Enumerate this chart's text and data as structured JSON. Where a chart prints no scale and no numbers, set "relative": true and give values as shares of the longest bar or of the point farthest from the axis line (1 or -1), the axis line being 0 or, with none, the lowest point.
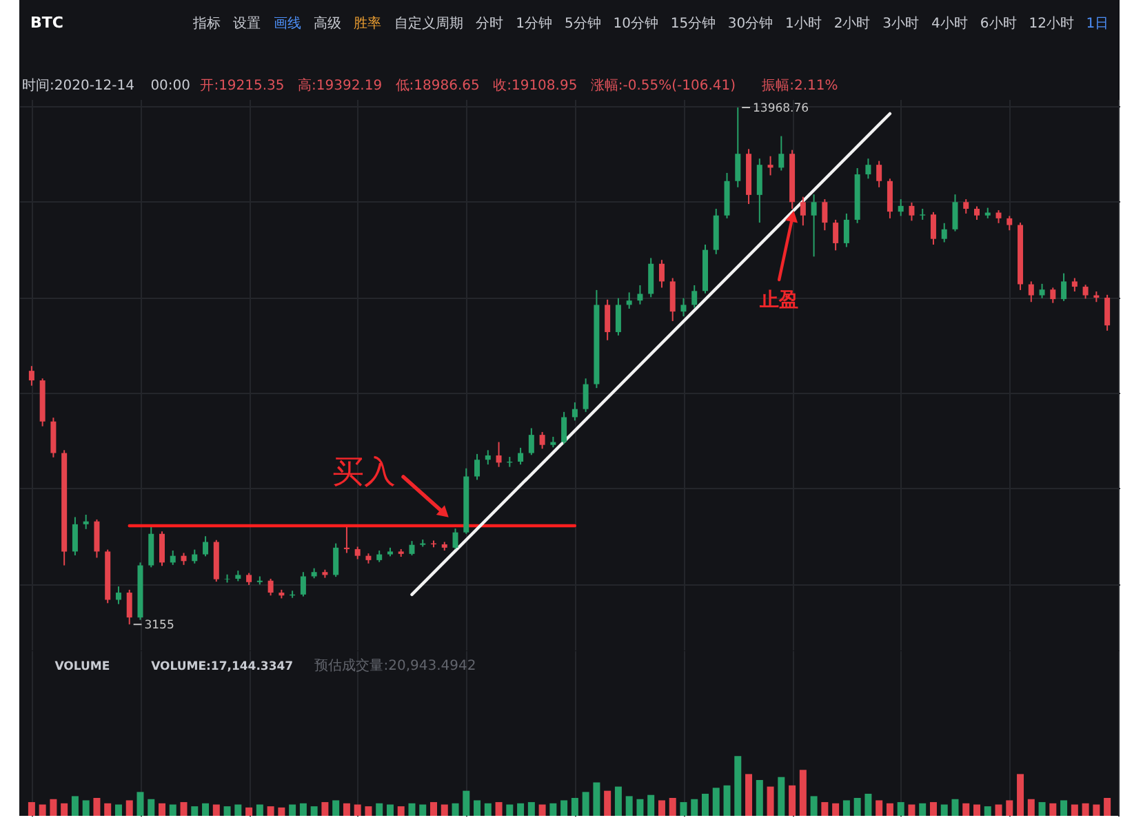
{
  "chart_data": [
    {
      "type": "candlestick",
      "grid": true,
      "title": "BTC",
      "subtitle": "时间:2020-12-14 00:00 开:19215.35 高:19392.19 低:18986.65 收:19108.95 涨幅:-0.55%(-106.41) 振幅:2.11%",
      "categories": [
        null,
        null,
        null,
        null,
        null,
        null,
        null,
        null,
        null,
        null,
        null,
        null,
        null,
        null,
        null,
        null,
        null,
        null,
        null,
        null,
        null,
        null,
        null,
        null,
        null,
        null,
        null,
        null,
        null,
        null,
        null,
        null,
        null,
        null,
        null,
        null,
        null,
        null,
        null,
        null,
        null,
        null,
        null,
        null,
        null,
        null,
        null,
        null,
        null,
        null,
        null,
        null,
        null,
        null,
        null,
        null,
        null,
        null,
        null,
        null,
        null,
        null,
        null,
        null,
        null,
        null,
        null,
        null,
        null,
        null,
        null,
        null,
        null,
        null,
        null,
        null,
        null,
        null,
        null,
        null,
        null,
        null,
        null,
        null,
        null,
        null,
        null,
        null,
        null,
        null,
        null,
        null,
        null,
        null,
        null,
        null,
        null,
        null,
        null,
        null
      ],
      "ohlc": [
        [
          8460,
          8560,
          8150,
          8260
        ],
        [
          8260,
          8300,
          7300,
          7400
        ],
        [
          7400,
          7480,
          6650,
          6740
        ],
        [
          6740,
          6800,
          4390,
          4680
        ],
        [
          4680,
          5400,
          4600,
          5250
        ],
        [
          5250,
          5450,
          5150,
          5310
        ],
        [
          5310,
          5350,
          4550,
          4680
        ],
        [
          4680,
          4720,
          3600,
          3670
        ],
        [
          3670,
          3950,
          3580,
          3820
        ],
        [
          3820,
          3880,
          3155,
          3300
        ],
        [
          3300,
          4450,
          3250,
          4390
        ],
        [
          4390,
          5190,
          4350,
          5050
        ],
        [
          5050,
          5100,
          4380,
          4450
        ],
        [
          4450,
          4700,
          4400,
          4590
        ],
        [
          4590,
          4650,
          4400,
          4480
        ],
        [
          4480,
          4720,
          4430,
          4620
        ],
        [
          4620,
          5000,
          4580,
          4880
        ],
        [
          4880,
          4920,
          4050,
          4100
        ],
        [
          4100,
          4200,
          4030,
          4110
        ],
        [
          4110,
          4280,
          4060,
          4190
        ],
        [
          4190,
          4230,
          3980,
          4040
        ],
        [
          4040,
          4160,
          3990,
          4070
        ],
        [
          4070,
          4110,
          3760,
          3820
        ],
        [
          3820,
          3880,
          3700,
          3760
        ],
        [
          3760,
          3860,
          3710,
          3780
        ],
        [
          3780,
          4250,
          3740,
          4160
        ],
        [
          4160,
          4330,
          4120,
          4250
        ],
        [
          4250,
          4300,
          4130,
          4190
        ],
        [
          4190,
          4850,
          4150,
          4760
        ],
        [
          4760,
          5190,
          4650,
          4730
        ],
        [
          4730,
          4780,
          4520,
          4590
        ],
        [
          4590,
          4640,
          4430,
          4500
        ],
        [
          4500,
          4700,
          4460,
          4620
        ],
        [
          4620,
          4760,
          4580,
          4680
        ],
        [
          4680,
          4730,
          4570,
          4630
        ],
        [
          4630,
          4900,
          4600,
          4820
        ],
        [
          4820,
          4930,
          4780,
          4850
        ],
        [
          4850,
          4910,
          4770,
          4830
        ],
        [
          4830,
          4880,
          4700,
          4760
        ],
        [
          4760,
          5160,
          4730,
          5080
        ],
        [
          5080,
          6420,
          5050,
          6250
        ],
        [
          6250,
          6720,
          6180,
          6600
        ],
        [
          6600,
          6800,
          6500,
          6690
        ],
        [
          6690,
          6970,
          6450,
          6540
        ],
        [
          6540,
          6660,
          6450,
          6560
        ],
        [
          6560,
          6850,
          6500,
          6740
        ],
        [
          6740,
          7260,
          6700,
          7120
        ],
        [
          7120,
          7180,
          6830,
          6910
        ],
        [
          6910,
          7080,
          6860,
          6970
        ],
        [
          6970,
          7600,
          6930,
          7490
        ],
        [
          7490,
          7800,
          7420,
          7660
        ],
        [
          7660,
          8300,
          7600,
          8180
        ],
        [
          8180,
          10150,
          8100,
          9840
        ],
        [
          9840,
          9950,
          9100,
          9270
        ],
        [
          9270,
          9980,
          9200,
          9840
        ],
        [
          9840,
          10100,
          9760,
          9930
        ],
        [
          9930,
          10250,
          9850,
          10070
        ],
        [
          10070,
          10820,
          10000,
          10700
        ],
        [
          10700,
          10780,
          10200,
          10330
        ],
        [
          10330,
          10400,
          9500,
          9700
        ],
        [
          9700,
          9980,
          9600,
          9840
        ],
        [
          9840,
          10250,
          9780,
          10130
        ],
        [
          10130,
          11100,
          10080,
          10990
        ],
        [
          10990,
          11850,
          10900,
          11710
        ],
        [
          11710,
          12600,
          11650,
          12430
        ],
        [
          12430,
          13968.76,
          12300,
          13000
        ],
        [
          13000,
          13100,
          11950,
          12140
        ],
        [
          12140,
          12900,
          11560,
          12770
        ],
        [
          12770,
          12950,
          12550,
          12710
        ],
        [
          12710,
          13370,
          12650,
          13000
        ],
        [
          13000,
          13080,
          11850,
          11990
        ],
        [
          11990,
          12100,
          11500,
          11710
        ],
        [
          11710,
          12150,
          10850,
          11990
        ],
        [
          11990,
          12050,
          11400,
          11560
        ],
        [
          11560,
          11620,
          10980,
          11130
        ],
        [
          11130,
          11750,
          11050,
          11620
        ],
        [
          11620,
          12700,
          11550,
          12570
        ],
        [
          12570,
          12900,
          12480,
          12770
        ],
        [
          12770,
          12850,
          12300,
          12430
        ],
        [
          12430,
          12480,
          11650,
          11790
        ],
        [
          11790,
          12050,
          11700,
          11910
        ],
        [
          11910,
          11980,
          11600,
          11710
        ],
        [
          11710,
          11850,
          11620,
          11730
        ],
        [
          11730,
          11780,
          11100,
          11220
        ],
        [
          11220,
          11550,
          11150,
          11420
        ],
        [
          11420,
          12150,
          11380,
          11990
        ],
        [
          11990,
          12050,
          11750,
          11850
        ],
        [
          11850,
          11900,
          11620,
          11710
        ],
        [
          11710,
          11870,
          11650,
          11770
        ],
        [
          11770,
          11820,
          11550,
          11650
        ],
        [
          11650,
          11700,
          11400,
          11510
        ],
        [
          11510,
          11560,
          10150,
          10270
        ],
        [
          10270,
          10330,
          9900,
          10040
        ],
        [
          10040,
          10280,
          9980,
          10160
        ],
        [
          10160,
          10200,
          9880,
          9960
        ],
        [
          9960,
          10500,
          9920,
          10330
        ],
        [
          10330,
          10400,
          10120,
          10220
        ],
        [
          10220,
          10260,
          9970,
          10040
        ],
        [
          10040,
          10120,
          9900,
          9990
        ],
        [
          9990,
          10050,
          9300,
          9410
        ]
      ],
      "colors": [
        "#e5444d",
        "#e5444d",
        "#e5444d",
        "#e5444d",
        "#26a269",
        "#26a269",
        "#e5444d",
        "#e5444d",
        "#26a269",
        "#e5444d",
        "#26a269",
        "#26a269",
        "#e5444d",
        "#26a269",
        "#e5444d",
        "#26a269",
        "#26a269",
        "#e5444d",
        "#26a269",
        "#26a269",
        "#e5444d",
        "#26a269",
        "#e5444d",
        "#e5444d",
        "#26a269",
        "#26a269",
        "#26a269",
        "#e5444d",
        "#26a269",
        "#e5444d",
        "#e5444d",
        "#e5444d",
        "#26a269",
        "#26a269",
        "#e5444d",
        "#26a269",
        "#26a269",
        "#e5444d",
        "#e5444d",
        "#26a269",
        "#26a269",
        "#26a269",
        "#26a269",
        "#e5444d",
        "#26a269",
        "#26a269",
        "#26a269",
        "#e5444d",
        "#26a269",
        "#26a269",
        "#26a269",
        "#26a269",
        "#26a269",
        "#e5444d",
        "#26a269",
        "#26a269",
        "#26a269",
        "#26a269",
        "#e5444d",
        "#e5444d",
        "#26a269",
        "#26a269",
        "#26a269",
        "#26a269",
        "#26a269",
        "#26a269",
        "#e5444d",
        "#26a269",
        "#e5444d",
        "#26a269",
        "#e5444d",
        "#e5444d",
        "#26a269",
        "#e5444d",
        "#e5444d",
        "#26a269",
        "#26a269",
        "#26a269",
        "#e5444d",
        "#e5444d",
        "#26a269",
        "#e5444d",
        "#26a269",
        "#e5444d",
        "#26a269",
        "#26a269",
        "#e5444d",
        "#e5444d",
        "#26a269",
        "#e5444d",
        "#e5444d",
        "#e5444d",
        "#e5444d",
        "#26a269",
        "#e5444d",
        "#26a269",
        "#e5444d",
        "#e5444d",
        "#e5444d",
        "#e5444d"
      ],
      "value_labels": [
        null,
        null,
        null,
        null,
        null,
        null,
        null,
        null,
        null,
        "3155",
        null,
        null,
        null,
        null,
        null,
        null,
        null,
        null,
        null,
        null,
        null,
        null,
        null,
        null,
        null,
        null,
        null,
        null,
        null,
        null,
        null,
        null,
        null,
        null,
        null,
        null,
        null,
        null,
        null,
        null,
        null,
        null,
        null,
        null,
        null,
        null,
        null,
        null,
        null,
        null,
        null,
        null,
        null,
        null,
        null,
        null,
        null,
        null,
        null,
        null,
        null,
        null,
        null,
        null,
        null,
        "13968.76",
        null,
        null,
        null,
        null,
        null,
        null,
        null,
        null,
        null,
        null,
        null,
        null,
        null,
        null,
        null,
        null,
        null,
        null,
        null,
        null,
        null,
        null,
        null,
        null,
        null,
        null,
        null,
        null,
        null,
        null,
        null,
        null,
        null,
        null
      ],
      "series": [
        {
          "type": "line",
          "color": "#ff1f1f",
          "values": [
            null,
            null,
            null,
            null,
            null,
            null,
            null,
            null,
            null,
            5220,
            null,
            null,
            null,
            null,
            null,
            null,
            null,
            null,
            null,
            null,
            null,
            null,
            null,
            null,
            null,
            null,
            null,
            null,
            null,
            null,
            null,
            null,
            null,
            null,
            null,
            null,
            null,
            null,
            null,
            null,
            null,
            null,
            null,
            null,
            null,
            null,
            null,
            null,
            null,
            null,
            5220,
            null,
            null,
            null,
            null,
            null,
            null,
            null,
            null,
            null,
            null,
            null,
            null,
            null,
            null,
            null,
            null,
            null,
            null,
            null,
            null,
            null,
            null,
            null,
            null,
            null,
            null,
            null,
            null,
            null,
            null,
            null,
            null,
            null,
            null,
            null,
            null,
            null,
            null,
            null,
            null,
            null,
            null,
            null,
            null,
            null,
            null,
            null,
            null,
            null
          ]
        },
        {
          "type": "line",
          "color": "#f2f2f2",
          "values": [
            null,
            null,
            null,
            null,
            null,
            null,
            null,
            null,
            null,
            null,
            null,
            null,
            null,
            null,
            null,
            null,
            null,
            null,
            null,
            null,
            null,
            null,
            null,
            null,
            null,
            null,
            null,
            null,
            null,
            null,
            null,
            null,
            null,
            null,
            null,
            3780,
            null,
            null,
            null,
            null,
            null,
            null,
            null,
            null,
            null,
            null,
            null,
            null,
            null,
            null,
            null,
            null,
            null,
            null,
            null,
            null,
            null,
            null,
            null,
            null,
            null,
            null,
            null,
            null,
            null,
            null,
            null,
            null,
            null,
            null,
            null,
            null,
            null,
            null,
            null,
            null,
            null,
            null,
            null,
            13840,
            null,
            null,
            null,
            null,
            null,
            null,
            null,
            null,
            null,
            null,
            null,
            null,
            null,
            null,
            null,
            null,
            null,
            null,
            null,
            null
          ]
        }
      ],
      "annotations": [
        "指标",
        "设置",
        "画线",
        "高级",
        "胜率",
        "自定义周期",
        "分时",
        "1分钟",
        "5分钟",
        "10分钟",
        "15分钟",
        "30分钟",
        "1小时",
        "2小时",
        "3小时",
        "4小时",
        "6小时",
        "12小时",
        "1日",
        "买入",
        "止盈"
      ]
    },
    {
      "type": "bar",
      "relative": true,
      "grid": "x",
      "title": "VOLUME",
      "annotations": [
        "VOLUME:17,144.3347",
        "预估成交量:20,943.4942"
      ],
      "categories": [
        null,
        null,
        null,
        null,
        null,
        null,
        null,
        null,
        null,
        null,
        null,
        null,
        null,
        null,
        null,
        null,
        null,
        null,
        null,
        null,
        null,
        null,
        null,
        null,
        null,
        null,
        null,
        null,
        null,
        null,
        null,
        null,
        null,
        null,
        null,
        null,
        null,
        null,
        null,
        null,
        null,
        null,
        null,
        null,
        null,
        null,
        null,
        null,
        null,
        null,
        null,
        null,
        null,
        null,
        null,
        null,
        null,
        null,
        null,
        null,
        null,
        null,
        null,
        null,
        null,
        null,
        null,
        null,
        null,
        null,
        null,
        null,
        null,
        null,
        null,
        null,
        null,
        null,
        null,
        null,
        null,
        null,
        null,
        null,
        null,
        null,
        null,
        null,
        null,
        null,
        null,
        null,
        null,
        null,
        null,
        null,
        null,
        null,
        null,
        null
      ],
      "values": [
        0.23,
        0.19,
        0.28,
        0.21,
        0.33,
        0.26,
        0.3,
        0.21,
        0.19,
        0.26,
        0.4,
        0.28,
        0.21,
        0.19,
        0.23,
        0.16,
        0.21,
        0.19,
        0.16,
        0.19,
        0.14,
        0.19,
        0.16,
        0.14,
        0.19,
        0.21,
        0.16,
        0.23,
        0.26,
        0.21,
        0.19,
        0.16,
        0.21,
        0.19,
        0.16,
        0.21,
        0.19,
        0.23,
        0.19,
        0.21,
        0.42,
        0.26,
        0.21,
        0.23,
        0.19,
        0.21,
        0.23,
        0.19,
        0.21,
        0.26,
        0.3,
        0.4,
        0.56,
        0.42,
        0.49,
        0.33,
        0.28,
        0.35,
        0.26,
        0.3,
        0.23,
        0.28,
        0.37,
        0.47,
        0.51,
        1,
        0.7,
        0.6,
        0.49,
        0.65,
        0.51,
        0.77,
        0.33,
        0.23,
        0.21,
        0.26,
        0.3,
        0.37,
        0.26,
        0.21,
        0.23,
        0.19,
        0.21,
        0.23,
        0.19,
        0.28,
        0.21,
        0.19,
        0.16,
        0.19,
        0.26,
        0.7,
        0.28,
        0.23,
        0.21,
        0.26,
        0.19,
        0.21,
        0.19,
        0.3
      ],
      "colors": [
        "#e5444d",
        "#e5444d",
        "#e5444d",
        "#e5444d",
        "#26a269",
        "#26a269",
        "#e5444d",
        "#e5444d",
        "#26a269",
        "#e5444d",
        "#26a269",
        "#26a269",
        "#e5444d",
        "#26a269",
        "#e5444d",
        "#26a269",
        "#26a269",
        "#e5444d",
        "#26a269",
        "#26a269",
        "#e5444d",
        "#26a269",
        "#e5444d",
        "#e5444d",
        "#26a269",
        "#26a269",
        "#26a269",
        "#e5444d",
        "#26a269",
        "#e5444d",
        "#e5444d",
        "#e5444d",
        "#26a269",
        "#26a269",
        "#e5444d",
        "#26a269",
        "#26a269",
        "#e5444d",
        "#e5444d",
        "#26a269",
        "#26a269",
        "#26a269",
        "#26a269",
        "#e5444d",
        "#26a269",
        "#26a269",
        "#26a269",
        "#e5444d",
        "#26a269",
        "#26a269",
        "#26a269",
        "#26a269",
        "#26a269",
        "#e5444d",
        "#26a269",
        "#26a269",
        "#26a269",
        "#26a269",
        "#e5444d",
        "#e5444d",
        "#26a269",
        "#26a269",
        "#26a269",
        "#26a269",
        "#26a269",
        "#26a269",
        "#e5444d",
        "#26a269",
        "#e5444d",
        "#26a269",
        "#e5444d",
        "#e5444d",
        "#26a269",
        "#e5444d",
        "#e5444d",
        "#26a269",
        "#26a269",
        "#26a269",
        "#e5444d",
        "#e5444d",
        "#26a269",
        "#e5444d",
        "#26a269",
        "#e5444d",
        "#26a269",
        "#26a269",
        "#e5444d",
        "#e5444d",
        "#26a269",
        "#e5444d",
        "#e5444d",
        "#e5444d",
        "#e5444d",
        "#26a269",
        "#e5444d",
        "#26a269",
        "#e5444d",
        "#e5444d",
        "#e5444d",
        "#e5444d"
      ]
    }
  ]
}
